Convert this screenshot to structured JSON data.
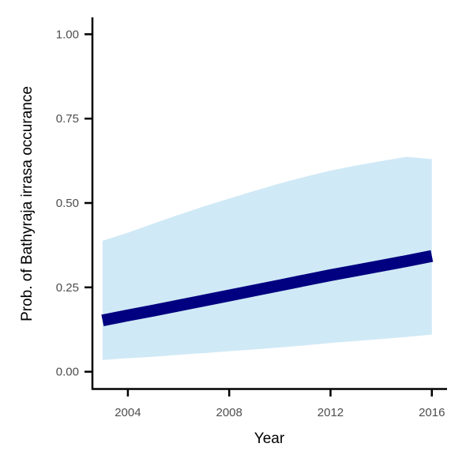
{
  "chart_data": {
    "type": "line",
    "title": "",
    "xlabel": "Year",
    "ylabel": "Prob. of  Bathyraja irrasa  occurance",
    "xlim": [
      2002.6,
      2016.6
    ],
    "ylim": [
      -0.05,
      1.05
    ],
    "x_ticks": [
      2004,
      2008,
      2012,
      2016
    ],
    "y_ticks": [
      0.0,
      0.25,
      0.5,
      0.75,
      1.0
    ],
    "y_tick_labels": [
      "0.00",
      "0.25",
      "0.50",
      "0.75",
      "1.00"
    ],
    "grid": false,
    "legend": "none",
    "series": [
      {
        "x": [
          2003,
          2004,
          2005,
          2006,
          2007,
          2008,
          2009,
          2010,
          2011,
          2012,
          2013,
          2014,
          2015,
          2016
        ],
        "y": [
          0.152,
          0.167,
          0.181,
          0.196,
          0.211,
          0.226,
          0.241,
          0.256,
          0.271,
          0.286,
          0.3,
          0.314,
          0.328,
          0.343
        ],
        "lower": [
          0.035,
          0.04,
          0.044,
          0.05,
          0.055,
          0.061,
          0.066,
          0.072,
          0.078,
          0.085,
          0.091,
          0.097,
          0.103,
          0.11
        ],
        "upper": [
          0.388,
          0.412,
          0.439,
          0.465,
          0.49,
          0.513,
          0.536,
          0.558,
          0.578,
          0.596,
          0.611,
          0.624,
          0.637,
          0.63
        ],
        "line_color": "#000080",
        "band_color": "#d0e9f6"
      }
    ]
  }
}
